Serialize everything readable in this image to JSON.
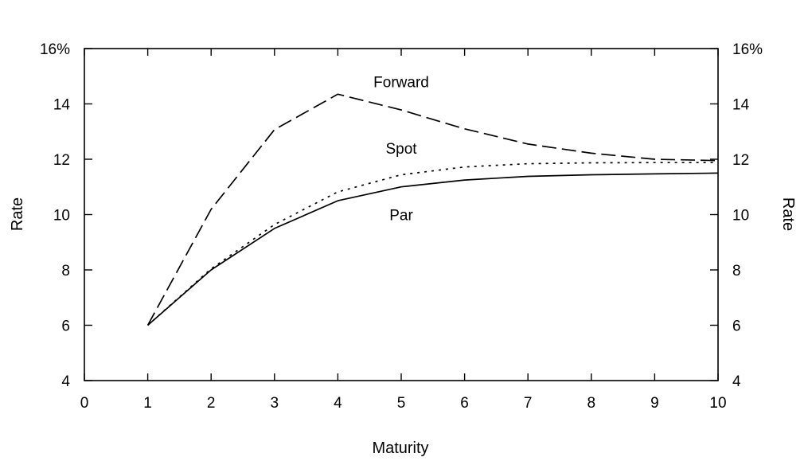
{
  "chart_data": {
    "type": "line",
    "title": "",
    "xlabel": "Maturity",
    "ylabel": "Rate",
    "ylabel_right": "Rate",
    "xlim": [
      0,
      10
    ],
    "ylim": [
      4,
      16
    ],
    "x_ticks": [
      "0",
      "1",
      "2",
      "3",
      "4",
      "5",
      "6",
      "7",
      "8",
      "9",
      "10"
    ],
    "y_ticks_left": [
      "4",
      "6",
      "8",
      "10",
      "12",
      "14",
      "16%"
    ],
    "y_ticks_right": [
      "4",
      "6",
      "8",
      "10",
      "12",
      "14",
      "16%"
    ],
    "grid": false,
    "legend": "none",
    "x": [
      1,
      2,
      3,
      4,
      5,
      6,
      7,
      8,
      9,
      10
    ],
    "series": [
      {
        "name": "Par",
        "style": "solid",
        "values": [
          6.0,
          8.0,
          9.5,
          10.5,
          11.0,
          11.25,
          11.38,
          11.44,
          11.47,
          11.5
        ]
      },
      {
        "name": "Spot",
        "style": "dotted",
        "values": [
          6.0,
          8.04,
          9.64,
          10.82,
          11.44,
          11.72,
          11.84,
          11.87,
          11.88,
          11.88
        ]
      },
      {
        "name": "Forward",
        "style": "dashed",
        "values": [
          6.0,
          10.19,
          13.07,
          14.35,
          13.78,
          13.1,
          12.55,
          12.22,
          12.0,
          11.95
        ]
      }
    ],
    "annotations": [
      {
        "text": "Forward",
        "x": 5.0,
        "y": 14.8
      },
      {
        "text": "Spot",
        "x": 5.0,
        "y": 12.4
      },
      {
        "text": "Par",
        "x": 5.0,
        "y": 10.0
      }
    ]
  }
}
